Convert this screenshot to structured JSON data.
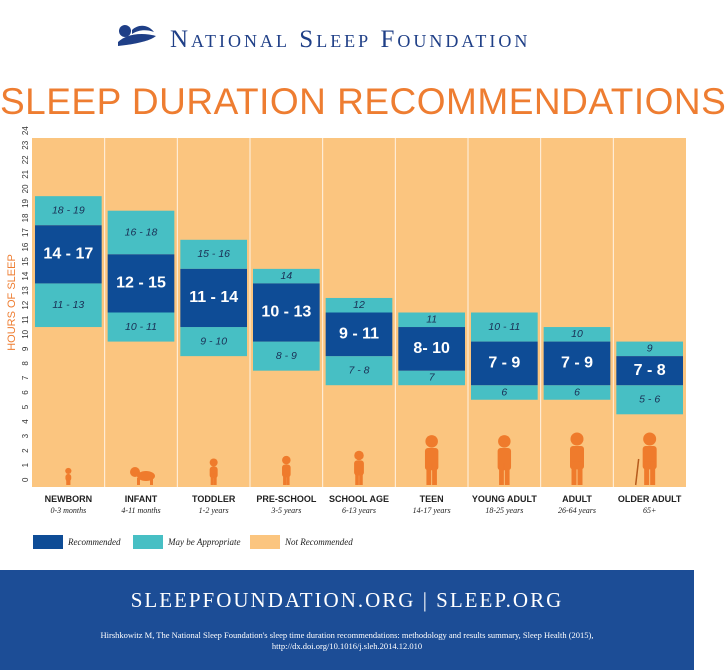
{
  "header": {
    "org_name": "National Sleep Foundation",
    "logo": "sleeping-figure-logo",
    "title": "SLEEP DURATION RECOMMENDATIONS"
  },
  "chart_data": {
    "type": "bar",
    "title": "SLEEP DURATION RECOMMENDATIONS",
    "ylabel": "HOURS OF SLEEP",
    "ylim": [
      0,
      24
    ],
    "yticks": [
      0,
      1,
      2,
      3,
      4,
      5,
      6,
      7,
      8,
      9,
      10,
      11,
      12,
      13,
      14,
      15,
      16,
      17,
      18,
      19,
      20,
      21,
      22,
      23,
      24
    ],
    "grid": false,
    "legend_position": "bottom-left",
    "colors": {
      "recommended": "#0e4c96",
      "may_be_appropriate": "#47bfc4",
      "not_recommended": "#fbc57f",
      "figure": "#ef7b2c"
    },
    "legend": [
      "Recommended",
      "May be Appropriate",
      "Not Recommended"
    ],
    "categories": [
      {
        "name": "NEWBORN",
        "age": "0-3 months",
        "recommended": [
          14,
          17
        ],
        "recommended_label": "14 - 17",
        "appropriate_low": [
          11,
          13
        ],
        "appropriate_low_label": "11 - 13",
        "appropriate_high": [
          18,
          19
        ],
        "appropriate_high_label": "18 - 19"
      },
      {
        "name": "INFANT",
        "age": "4-11 months",
        "recommended": [
          12,
          15
        ],
        "recommended_label": "12 - 15",
        "appropriate_low": [
          10,
          11
        ],
        "appropriate_low_label": "10 - 11",
        "appropriate_high": [
          16,
          18
        ],
        "appropriate_high_label": "16 - 18"
      },
      {
        "name": "TODDLER",
        "age": "1-2 years",
        "recommended": [
          11,
          14
        ],
        "recommended_label": "11 - 14",
        "appropriate_low": [
          9,
          10
        ],
        "appropriate_low_label": "9 - 10",
        "appropriate_high": [
          15,
          16
        ],
        "appropriate_high_label": "15 - 16"
      },
      {
        "name": "PRE-SCHOOL",
        "age": "3-5 years",
        "recommended": [
          10,
          13
        ],
        "recommended_label": "10 - 13",
        "appropriate_low": [
          8,
          9
        ],
        "appropriate_low_label": "8 - 9",
        "appropriate_high": [
          14,
          14
        ],
        "appropriate_high_label": "14"
      },
      {
        "name": "SCHOOL AGE",
        "age": "6-13 years",
        "recommended": [
          9,
          11
        ],
        "recommended_label": "9 - 11",
        "appropriate_low": [
          7,
          8
        ],
        "appropriate_low_label": "7 - 8",
        "appropriate_high": [
          12,
          12
        ],
        "appropriate_high_label": "12"
      },
      {
        "name": "TEEN",
        "age": "14-17 years",
        "recommended": [
          8,
          10
        ],
        "recommended_label": "8- 10",
        "appropriate_low": [
          7,
          7
        ],
        "appropriate_low_label": "7",
        "appropriate_high": [
          11,
          11
        ],
        "appropriate_high_label": "11"
      },
      {
        "name": "YOUNG ADULT",
        "age": "18-25 years",
        "recommended": [
          7,
          9
        ],
        "recommended_label": "7 - 9",
        "appropriate_low": [
          6,
          6
        ],
        "appropriate_low_label": "6",
        "appropriate_high": [
          10,
          11
        ],
        "appropriate_high_label": "10 - 11"
      },
      {
        "name": "ADULT",
        "age": "26-64 years",
        "recommended": [
          7,
          9
        ],
        "recommended_label": "7 - 9",
        "appropriate_low": [
          6,
          6
        ],
        "appropriate_low_label": "6",
        "appropriate_high": [
          10,
          10
        ],
        "appropriate_high_label": "10"
      },
      {
        "name": "OLDER ADULT",
        "age": "65+",
        "recommended": [
          7,
          8
        ],
        "recommended_label": "7 - 8",
        "appropriate_low": [
          5,
          6
        ],
        "appropriate_low_label": "5 - 6",
        "appropriate_high": [
          9,
          9
        ],
        "appropriate_high_label": "9"
      }
    ]
  },
  "footer": {
    "urls": "SLEEPFOUNDATION.ORG | SLEEP.ORG",
    "citation_line1": "Hirshkowitz M, The National Sleep Foundation's sleep time duration recommendations: methodology and results summary, Sleep Health (2015),",
    "citation_line2": "http://dx.doi.org/10.1016/j.sleh.2014.12.010"
  }
}
